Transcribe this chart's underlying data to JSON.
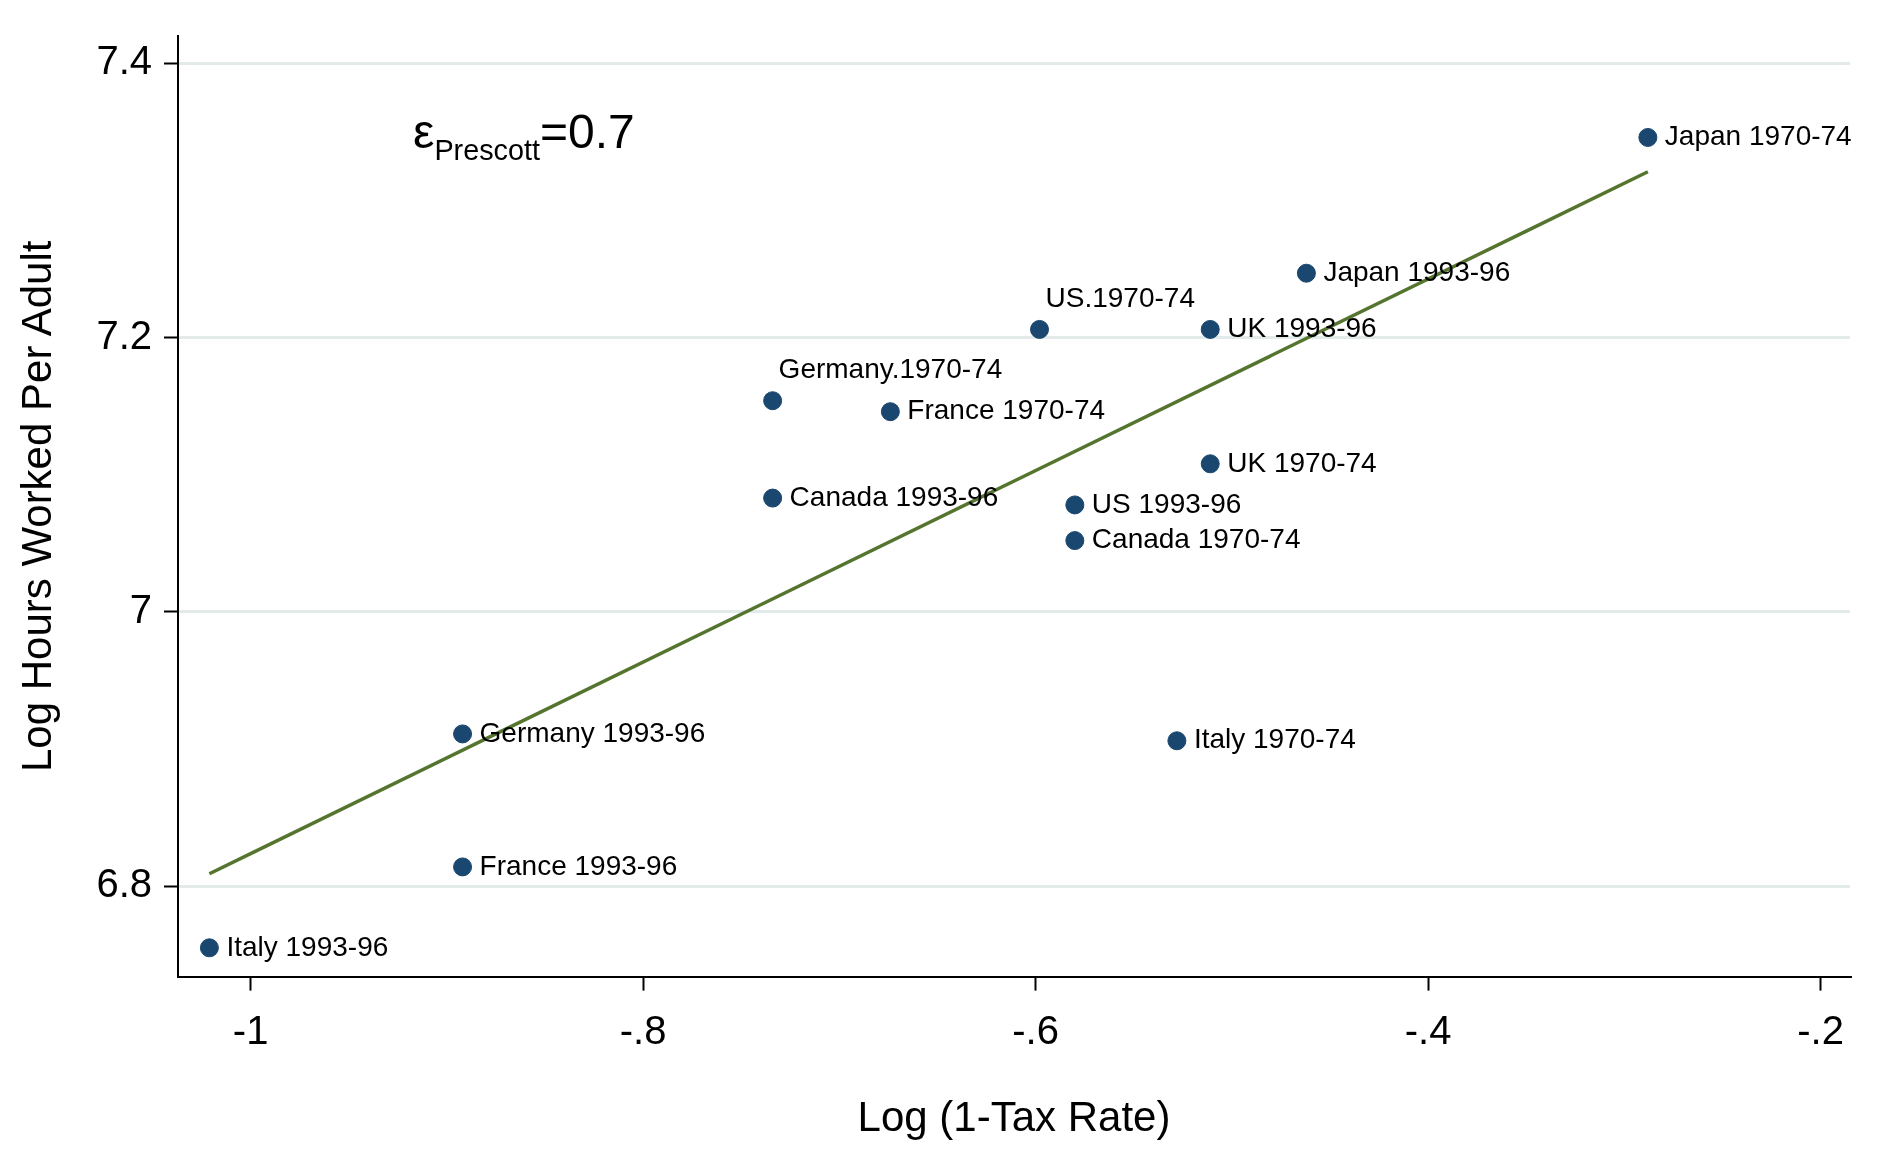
{
  "chart_data": {
    "type": "scatter",
    "xlabel": "Log (1-Tax Rate)",
    "ylabel": "Log Hours Worked Per Adult",
    "annotations": [
      "ε$_{Prescott}$=0.7"
    ],
    "xlim": [
      -1.037,
      -0.185
    ],
    "xticks": [
      {
        "value": -1,
        "label": "-1"
      },
      {
        "value": -0.8,
        "label": "-.8"
      },
      {
        "value": -0.6,
        "label": "-.6"
      },
      {
        "value": -0.4,
        "label": "-.4"
      },
      {
        "value": -0.2,
        "label": "-.2"
      }
    ],
    "ylim": [
      6.734,
      7.42
    ],
    "yticks": [
      6.8,
      7,
      7.2,
      7.4
    ],
    "grid": "y",
    "legend": false,
    "marker": "circle",
    "series": [
      {
        "type": "scatter",
        "color": "#1a476f",
        "x": [
          -0.288,
          -0.462,
          -0.598,
          -0.511,
          -0.734,
          -0.674,
          -0.511,
          -0.734,
          -0.58,
          -0.58,
          -0.892,
          -0.528,
          -0.892,
          -1.021
        ],
        "values": [
          7.346,
          7.247,
          7.206,
          7.206,
          7.154,
          7.146,
          7.108,
          7.083,
          7.078,
          7.052,
          6.911,
          6.906,
          6.814,
          6.755
        ],
        "value_labels": [
          "Japan 1970-74",
          "Japan 1993-96",
          "US.1970-74",
          "UK 1993-96",
          "Germany.1970-74",
          "France 1970-74",
          "UK 1970-74",
          "Canada 1993-96",
          "US 1993-96",
          "Canada 1970-74",
          "Germany 1993-96",
          "Italy 1970-74",
          "France 1993-96",
          "Italy 1993-96"
        ]
      },
      {
        "type": "line",
        "color": "#55752f",
        "x": [
          -1.021,
          -0.288
        ],
        "values": [
          6.809,
          7.321
        ],
        "marker": "none"
      }
    ]
  }
}
